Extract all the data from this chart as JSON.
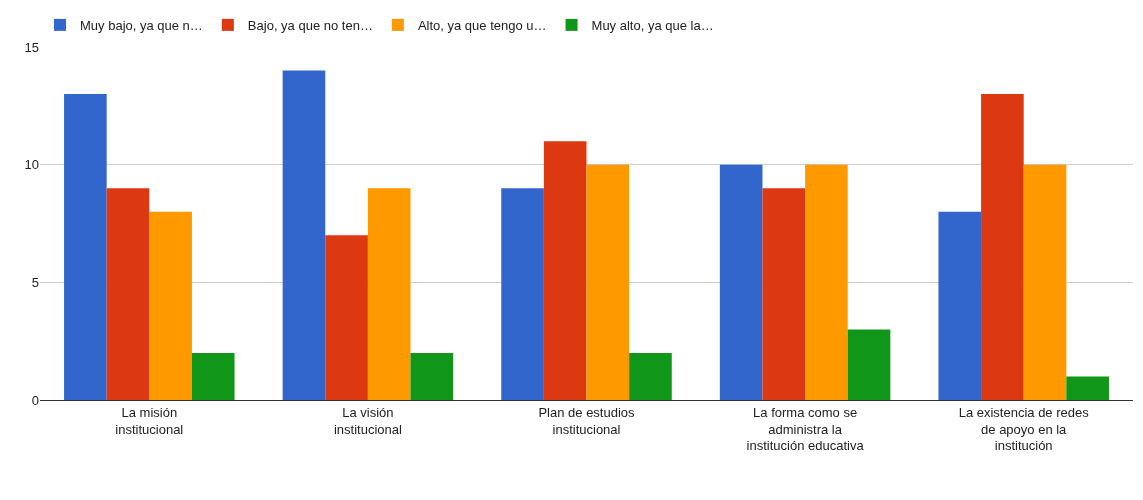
{
  "chart_data": {
    "type": "bar",
    "categories": [
      "La misión institucional",
      "La visión institucional",
      "Plan de estudios institucional",
      "La forma como se administra la institución educativa",
      "La existencia de redes de apoyo en la institución"
    ],
    "series": [
      {
        "name": "Muy bajo, ya que n…",
        "color": "#3366cc",
        "values": [
          13,
          14,
          9,
          10,
          8
        ]
      },
      {
        "name": "Bajo, ya que no ten…",
        "color": "#dc3912",
        "values": [
          9,
          7,
          11,
          9,
          13
        ]
      },
      {
        "name": "Alto, ya que tengo u…",
        "color": "#ff9900",
        "values": [
          8,
          9,
          10,
          10,
          10
        ]
      },
      {
        "name": "Muy alto, ya que la…",
        "color": "#109618",
        "values": [
          2,
          2,
          2,
          3,
          1
        ]
      }
    ],
    "ylim": [
      0,
      15
    ],
    "yticks": [
      0,
      5,
      10,
      15
    ],
    "grid": "y",
    "legend": "top"
  }
}
